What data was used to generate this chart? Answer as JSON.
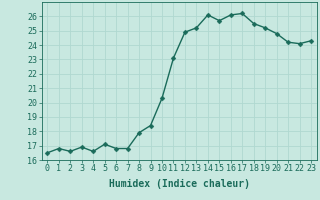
{
  "x": [
    0,
    1,
    2,
    3,
    4,
    5,
    6,
    7,
    8,
    9,
    10,
    11,
    12,
    13,
    14,
    15,
    16,
    17,
    18,
    19,
    20,
    21,
    22,
    23
  ],
  "y": [
    16.5,
    16.8,
    16.6,
    16.9,
    16.6,
    17.1,
    16.8,
    16.8,
    17.9,
    18.4,
    20.3,
    23.1,
    24.9,
    25.2,
    26.1,
    25.7,
    26.1,
    26.2,
    25.5,
    25.2,
    24.8,
    24.2,
    24.1,
    24.3
  ],
  "xlabel": "Humidex (Indice chaleur)",
  "ylim": [
    16,
    27
  ],
  "xlim": [
    -0.5,
    23.5
  ],
  "yticks": [
    16,
    17,
    18,
    19,
    20,
    21,
    22,
    23,
    24,
    25,
    26
  ],
  "xticks": [
    0,
    1,
    2,
    3,
    4,
    5,
    6,
    7,
    8,
    9,
    10,
    11,
    12,
    13,
    14,
    15,
    16,
    17,
    18,
    19,
    20,
    21,
    22,
    23
  ],
  "line_color": "#1a6b5a",
  "marker_color": "#1a6b5a",
  "bg_color": "#c8e8e0",
  "grid_color": "#b0d8d0",
  "axis_color": "#1a6b5a",
  "tick_label_color": "#1a6b5a",
  "xlabel_color": "#1a6b5a",
  "xlabel_fontsize": 7,
  "tick_fontsize": 6,
  "linewidth": 1.0,
  "markersize": 2.5
}
